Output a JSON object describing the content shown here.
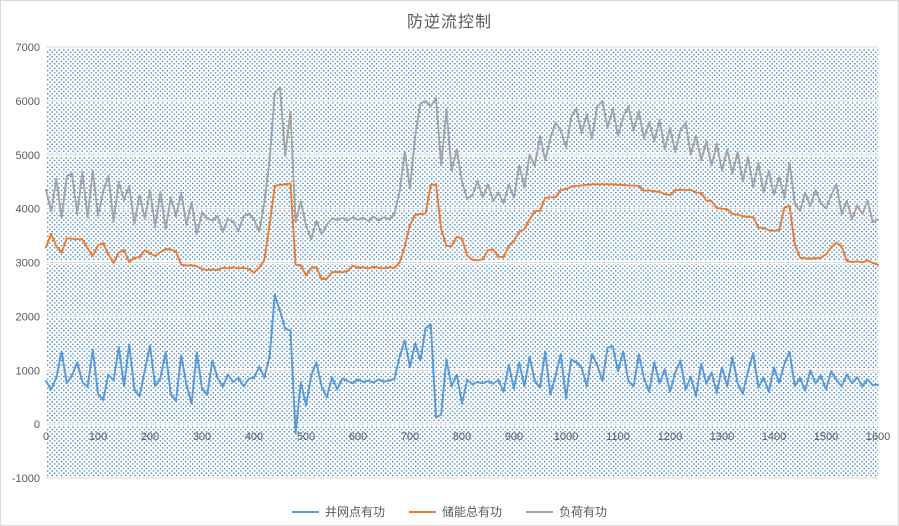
{
  "title": "防逆流控制",
  "colors": {
    "title_text": "#595959",
    "axis_text": "#595959",
    "gridline": "#d9d9d9",
    "plot_dot_pattern": "#3f7ec0",
    "chart_border": "#d9d9d9",
    "background": "#ffffff"
  },
  "legend": {
    "items": [
      {
        "label": "并网点有功",
        "color": "#5B9BD5"
      },
      {
        "label": "储能总有功",
        "color": "#ED7D31"
      },
      {
        "label": "负荷有功",
        "color": "#A5A5A5"
      }
    ]
  },
  "chart_data": {
    "type": "line",
    "title": "防逆流控制",
    "xlabel": "",
    "ylabel": "",
    "xlim": [
      0,
      1600
    ],
    "ylim": [
      -1000,
      7000
    ],
    "x_ticks": [
      0,
      100,
      200,
      300,
      400,
      500,
      600,
      700,
      800,
      900,
      1000,
      1100,
      1200,
      1300,
      1400,
      1500,
      1600
    ],
    "y_ticks": [
      7000,
      6000,
      5000,
      4000,
      3000,
      2000,
      1000,
      0,
      -1000
    ],
    "grid": "horizontal",
    "legend_position": "bottom",
    "plot_background": "blue-dot-pattern",
    "x_start": 0,
    "x_step": 10,
    "series": [
      {
        "name": "并网点有功",
        "color": "#5B9BD5",
        "values": [
          800,
          640,
          870,
          1350,
          760,
          900,
          1150,
          780,
          690,
          1380,
          560,
          450,
          920,
          810,
          1430,
          700,
          1480,
          640,
          520,
          990,
          1460,
          700,
          850,
          1340,
          560,
          430,
          1280,
          740,
          380,
          1330,
          660,
          540,
          1180,
          850,
          700,
          920,
          780,
          860,
          700,
          840,
          860,
          1060,
          870,
          1250,
          2400,
          2100,
          1770,
          1740,
          -170,
          780,
          350,
          900,
          1150,
          700,
          500,
          870,
          640,
          850,
          800,
          760,
          830,
          780,
          810,
          770,
          830,
          790,
          810,
          840,
          1250,
          1550,
          1060,
          1500,
          1180,
          1780,
          1850,
          120,
          180,
          1200,
          700,
          920,
          380,
          820,
          740,
          780,
          760,
          800,
          750,
          820,
          600,
          1100,
          660,
          1150,
          700,
          1250,
          800,
          680,
          1350,
          550,
          900,
          1300,
          480,
          1200,
          1150,
          1050,
          700,
          1300,
          1100,
          800,
          1420,
          1450,
          980,
          1350,
          800,
          700,
          1300,
          850,
          600,
          1150,
          750,
          1020,
          600,
          950,
          1180,
          640,
          880,
          520,
          1120,
          750,
          960,
          580,
          1060,
          700,
          1240,
          760,
          560,
          980,
          1320,
          680,
          860,
          600,
          1050,
          760,
          1120,
          1340,
          700,
          860,
          620,
          1000,
          750,
          900,
          640,
          980,
          820,
          700,
          920,
          760,
          870,
          700,
          830,
          720,
          730
        ]
      },
      {
        "name": "储能总有功",
        "color": "#ED7D31",
        "values": [
          3280,
          3530,
          3300,
          3180,
          3450,
          3440,
          3430,
          3430,
          3260,
          3120,
          3320,
          3360,
          3150,
          2990,
          3190,
          3230,
          3010,
          3090,
          3100,
          3230,
          3170,
          3120,
          3190,
          3250,
          3240,
          3200,
          2960,
          2940,
          2950,
          2930,
          2880,
          2860,
          2870,
          2860,
          2900,
          2890,
          2910,
          2890,
          2900,
          2880,
          2810,
          2900,
          3050,
          3700,
          4420,
          4440,
          4450,
          4470,
          2960,
          2950,
          2760,
          2900,
          2910,
          2690,
          2700,
          2820,
          2830,
          2820,
          2840,
          2940,
          2900,
          2910,
          2890,
          2920,
          2900,
          2890,
          2910,
          2900,
          3000,
          3300,
          3700,
          3890,
          3900,
          3910,
          4440,
          4450,
          3620,
          3310,
          3300,
          3480,
          3440,
          3130,
          3050,
          3040,
          3060,
          3230,
          3240,
          3110,
          3100,
          3310,
          3400,
          3570,
          3620,
          3800,
          3950,
          3960,
          4200,
          4210,
          4210,
          4350,
          4360,
          4410,
          4420,
          4430,
          4440,
          4450,
          4450,
          4450,
          4450,
          4450,
          4440,
          4440,
          4430,
          4430,
          4420,
          4330,
          4340,
          4320,
          4310,
          4270,
          4250,
          4340,
          4350,
          4340,
          4350,
          4300,
          4290,
          4150,
          4140,
          4010,
          4000,
          3990,
          3900,
          3890,
          3860,
          3850,
          3840,
          3650,
          3640,
          3600,
          3590,
          3600,
          4020,
          4050,
          3340,
          3090,
          3080,
          3070,
          3080,
          3090,
          3150,
          3280,
          3370,
          3300,
          3030,
          3010,
          3020,
          3000,
          3040,
          2990,
          2960
        ]
      },
      {
        "name": "负荷有功",
        "color": "#A5A5A5",
        "values": [
          4350,
          3950,
          4550,
          3820,
          4600,
          4650,
          3900,
          4680,
          3840,
          4700,
          3870,
          4320,
          4610,
          3760,
          4500,
          4160,
          4420,
          3720,
          4260,
          3810,
          4340,
          3660,
          4310,
          3620,
          4210,
          3860,
          4300,
          3700,
          4120,
          3520,
          3920,
          3820,
          3780,
          3860,
          3560,
          3810,
          3760,
          3580,
          3860,
          3910,
          3800,
          3570,
          4120,
          4900,
          6150,
          6250,
          4980,
          5800,
          3750,
          4130,
          3690,
          3430,
          3780,
          3520,
          3700,
          3820,
          3790,
          3830,
          3780,
          3840,
          3790,
          3830,
          3770,
          3850,
          3780,
          3840,
          3800,
          3900,
          4320,
          5050,
          4380,
          5350,
          5950,
          6000,
          5900,
          6050,
          4800,
          5850,
          4700,
          5100,
          4500,
          4180,
          4250,
          4510,
          4200,
          4450,
          4140,
          4300,
          4100,
          4450,
          4200,
          4810,
          4390,
          5000,
          4800,
          5340,
          4900,
          5300,
          5600,
          5450,
          5130,
          5700,
          5850,
          5400,
          5750,
          5300,
          5900,
          6000,
          5500,
          5850,
          5350,
          5700,
          5900,
          5450,
          5800,
          5300,
          5600,
          5250,
          5650,
          5100,
          5500,
          5050,
          5450,
          5600,
          5000,
          5350,
          4900,
          5250,
          4800,
          5200,
          4700,
          5100,
          4650,
          5050,
          4500,
          4950,
          4400,
          4850,
          4300,
          4700,
          4250,
          4600,
          4200,
          4850,
          4100,
          3950,
          4300,
          4050,
          4350,
          4100,
          4000,
          4250,
          4450,
          3900,
          4150,
          3800,
          4050,
          3900,
          4150,
          3750,
          3800
        ]
      }
    ]
  }
}
